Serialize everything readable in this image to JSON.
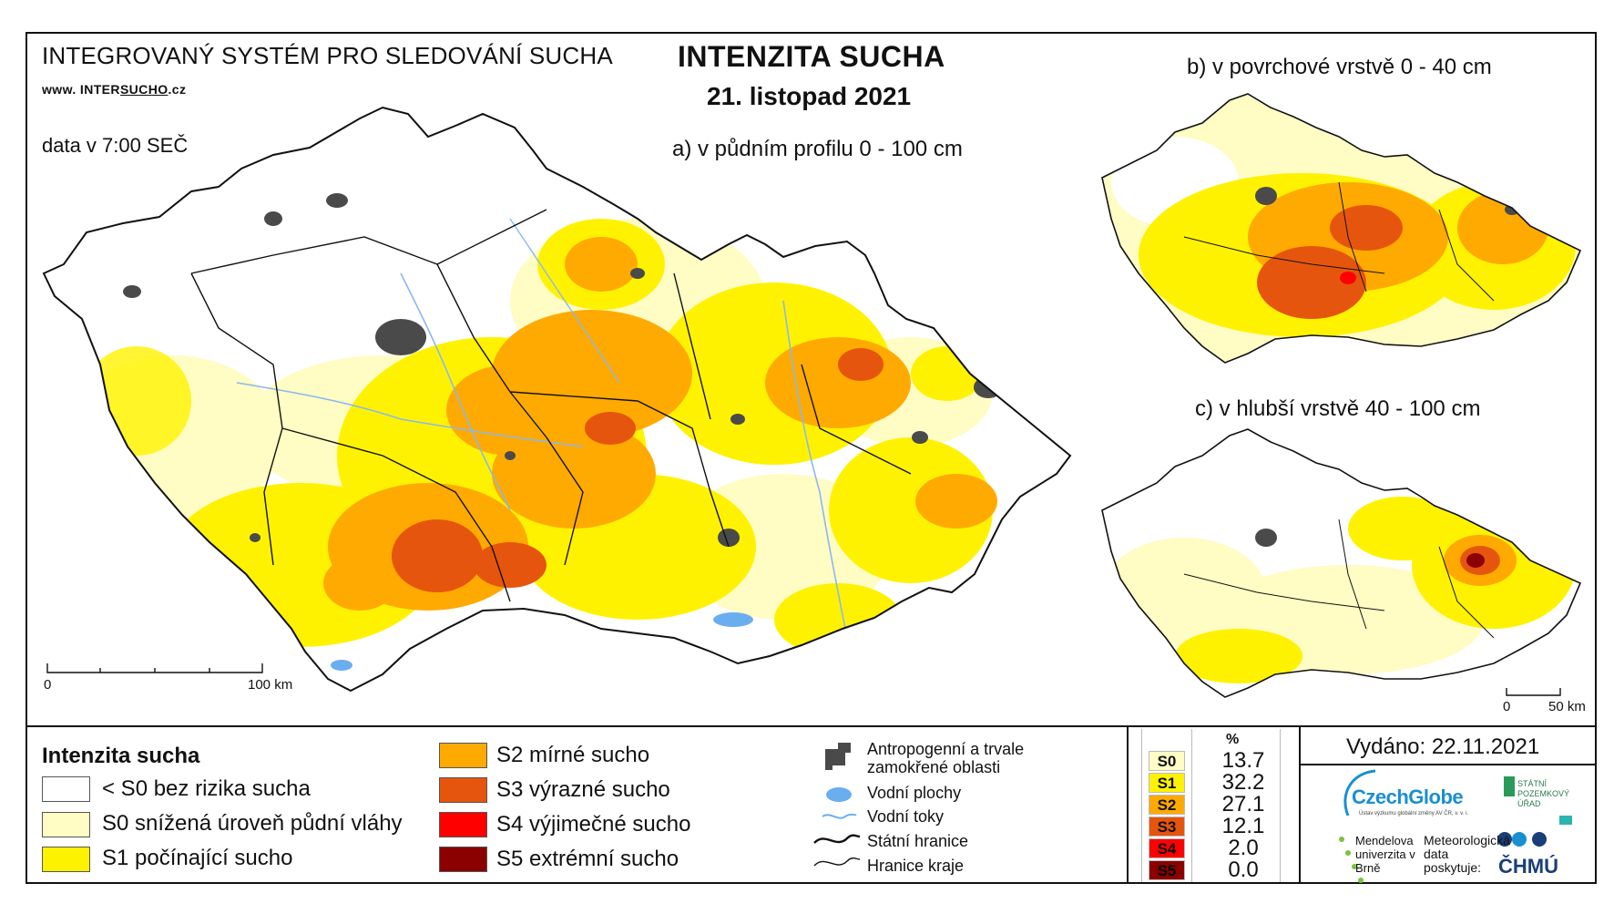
{
  "header": {
    "system": "INTEGROVANÝ SYSTÉM PRO SLEDOVÁNÍ SUCHA",
    "web_prefix": "www. INTER",
    "web_brand": "SUCHO",
    "web_suffix": ".cz",
    "data_time": "data v 7:00 SEČ",
    "title": "INTENZITA SUCHA",
    "date": "21. listopad 2021"
  },
  "maps": {
    "main_caption": "a) v půdním profilu 0 - 100 cm",
    "surface_caption": "b) v povrchové vrstvě 0 - 40 cm",
    "deep_caption": "c) v hlubší vrstvě 40 - 100 cm",
    "main_scale": {
      "start": "0",
      "end": "100 km"
    },
    "small_scale": {
      "start": "0",
      "end": "50 km"
    }
  },
  "legend": {
    "title": "Intenzita sucha",
    "classes": [
      {
        "label": "< S0 bez rizika sucha",
        "color": "#ffffff"
      },
      {
        "label": "S0 snížená úroveň půdní vláhy",
        "color": "#fffcc4"
      },
      {
        "label": "S1 počínající sucho",
        "color": "#fff200"
      },
      {
        "label": "S2 mírné sucho",
        "color": "#ffaa00"
      },
      {
        "label": "S3 výrazné sucho",
        "color": "#e6550d"
      },
      {
        "label": "S4 výjimečné sucho",
        "color": "#ff0000"
      },
      {
        "label": "S5 extrémní sucho",
        "color": "#8b0000"
      }
    ],
    "symbols": {
      "anthropogenic": "Antropogenní a trvale zamokřené oblasti",
      "water_areas": "Vodní plochy",
      "streams": "Vodní toky",
      "state_border": "Státní hranice",
      "region_border": "Hranice kraje"
    }
  },
  "stats": {
    "header": "%",
    "rows": [
      {
        "code": "S0",
        "value": "13.7",
        "color": "#fffcc4"
      },
      {
        "code": "S1",
        "value": "32.2",
        "color": "#fff200"
      },
      {
        "code": "S2",
        "value": "27.1",
        "color": "#ffaa00"
      },
      {
        "code": "S3",
        "value": "12.1",
        "color": "#e6550d"
      },
      {
        "code": "S4",
        "value": "2.0",
        "color": "#ff0000"
      },
      {
        "code": "S5",
        "value": "0.0",
        "color": "#8b0000"
      }
    ]
  },
  "footer": {
    "issued": "Vydáno: 22.11.2021",
    "czechglobe": "CzechGlobe",
    "czechglobe_sub": "Ústav výzkumu globální změny AV ČR, v. v. i.",
    "spu": "STÁTNÍ POZEMKOVÝ ÚŘAD",
    "mendel": "Mendelova univerzita v Brně",
    "meteo": "Meteorologická data poskytuje:",
    "chmu": "ČHMÚ"
  },
  "colors": {
    "accent_blue": "#1a8fd0",
    "water": "#6aaef0",
    "urban": "#4a4a4a"
  }
}
